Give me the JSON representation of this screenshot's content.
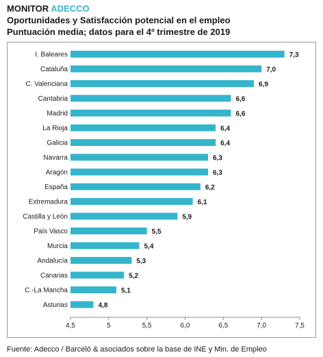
{
  "header": {
    "brand": "MONITOR",
    "brand_accent": "ADECCO",
    "title": "Oportunidades y Satisfacción potencial en el empleo",
    "subtitle": "Puntuación media; datos para el 4º trimestre de 2019"
  },
  "source": "Fuente: Adecco / Barceló & asociados sobre la base de INE y Min. de Empleo",
  "colors": {
    "bar": "#35b5cc",
    "accent": "#3bb3c9",
    "axis": "#8c8c8c",
    "text": "#1a1a1a"
  },
  "chart_data": {
    "type": "bar",
    "orientation": "horizontal",
    "title": "Oportunidades y Satisfacción potencial en el empleo",
    "subtitle": "Puntuación media; datos para el 4º trimestre de 2019",
    "categories": [
      "I. Baleares",
      "Cataluña",
      "C. Valenciana",
      "Cantabria",
      "Madrid",
      "La Rioja",
      "Galicia",
      "Navarra",
      "Aragón",
      "España",
      "Extremadura",
      "Castilla y León",
      "País Vasco",
      "Murcia",
      "Andalucía",
      "Canarias",
      "C.-La Mancha",
      "Asturias"
    ],
    "values": [
      7.3,
      7.0,
      6.9,
      6.6,
      6.6,
      6.4,
      6.4,
      6.3,
      6.3,
      6.2,
      6.1,
      5.9,
      5.5,
      5.4,
      5.3,
      5.2,
      5.1,
      4.8
    ],
    "value_labels": [
      "7,3",
      "7,0",
      "6,9",
      "6,6",
      "6,6",
      "6,4",
      "6,4",
      "6,3",
      "6,3",
      "6,2",
      "6,1",
      "5,9",
      "5,5",
      "5,4",
      "5,3",
      "5,2",
      "5,1",
      "4,8"
    ],
    "xlim": [
      4.5,
      7.5
    ],
    "xticks": [
      4.5,
      5.0,
      5.5,
      6.0,
      6.5,
      7.0,
      7.5
    ],
    "xtick_labels": [
      "4,5",
      "5",
      "5,5",
      "6,0",
      "6,5",
      "7,0",
      "7,5"
    ],
    "xlabel": "",
    "ylabel": "",
    "grid": false,
    "legend": "none"
  }
}
